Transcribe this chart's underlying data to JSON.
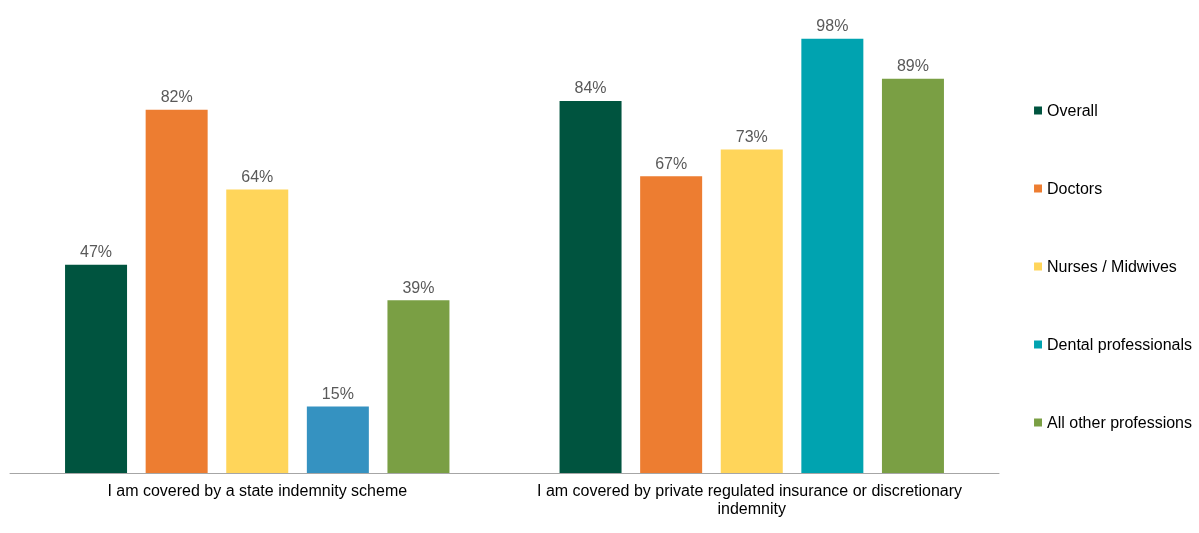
{
  "chart_data": {
    "type": "bar",
    "categories": [
      "I am covered by a state indemnity scheme",
      "I am covered by private regulated insurance or discretionary indemnity"
    ],
    "series": [
      {
        "name": "Overall",
        "color": "#00543f",
        "values": [
          47,
          84
        ],
        "value_labels": [
          "47%",
          "84%"
        ]
      },
      {
        "name": "Doctors",
        "color": "#ed7d31",
        "values": [
          82,
          67
        ],
        "value_labels": [
          "82%",
          "67%"
        ]
      },
      {
        "name": "Nurses / Midwives",
        "color": "#ffd55a",
        "values": [
          64,
          73
        ],
        "value_labels": [
          "64%",
          "73%"
        ]
      },
      {
        "name": "Dental professionals",
        "color": "#00a3b0",
        "colors": [
          "#3592c1",
          "#00a3b0"
        ],
        "values": [
          15,
          98
        ],
        "value_labels": [
          "15%",
          "98%"
        ]
      },
      {
        "name": "All other professions",
        "color": "#7a9f44",
        "values": [
          39,
          89
        ],
        "value_labels": [
          "39%",
          "89%"
        ]
      }
    ],
    "legend": "right"
  }
}
